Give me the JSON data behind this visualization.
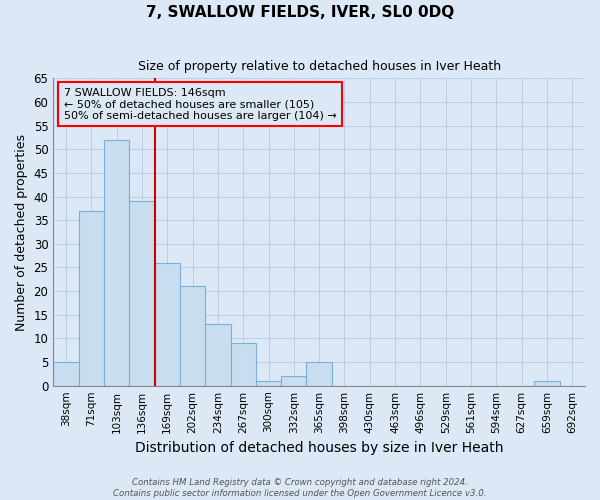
{
  "title": "7, SWALLOW FIELDS, IVER, SL0 0DQ",
  "subtitle": "Size of property relative to detached houses in Iver Heath",
  "xlabel": "Distribution of detached houses by size in Iver Heath",
  "ylabel": "Number of detached properties",
  "bin_labels": [
    "38sqm",
    "71sqm",
    "103sqm",
    "136sqm",
    "169sqm",
    "202sqm",
    "234sqm",
    "267sqm",
    "300sqm",
    "332sqm",
    "365sqm",
    "398sqm",
    "430sqm",
    "463sqm",
    "496sqm",
    "529sqm",
    "561sqm",
    "594sqm",
    "627sqm",
    "659sqm",
    "692sqm"
  ],
  "values": [
    5,
    37,
    52,
    39,
    26,
    21,
    13,
    9,
    1,
    2,
    5,
    0,
    0,
    0,
    0,
    0,
    0,
    0,
    0,
    1,
    0
  ],
  "bar_color": "#c8ddf0",
  "bar_edge_color": "#7ab0d8",
  "vline_color": "#cc0000",
  "vline_x_index": 3.5,
  "annotation_text": "7 SWALLOW FIELDS: 146sqm\n← 50% of detached houses are smaller (105)\n50% of semi-detached houses are larger (104) →",
  "ylim": [
    0,
    65
  ],
  "yticks": [
    0,
    5,
    10,
    15,
    20,
    25,
    30,
    35,
    40,
    45,
    50,
    55,
    60,
    65
  ],
  "footer_line1": "Contains HM Land Registry data © Crown copyright and database right 2024.",
  "footer_line2": "Contains public sector information licensed under the Open Government Licence v3.0.",
  "bg_color": "#dce8f5",
  "plot_bg_color": "#dce8f5",
  "grid_color": "#b8cfe8",
  "title_fontsize": 11,
  "subtitle_fontsize": 9,
  "xlabel_fontsize": 10,
  "ylabel_fontsize": 9
}
